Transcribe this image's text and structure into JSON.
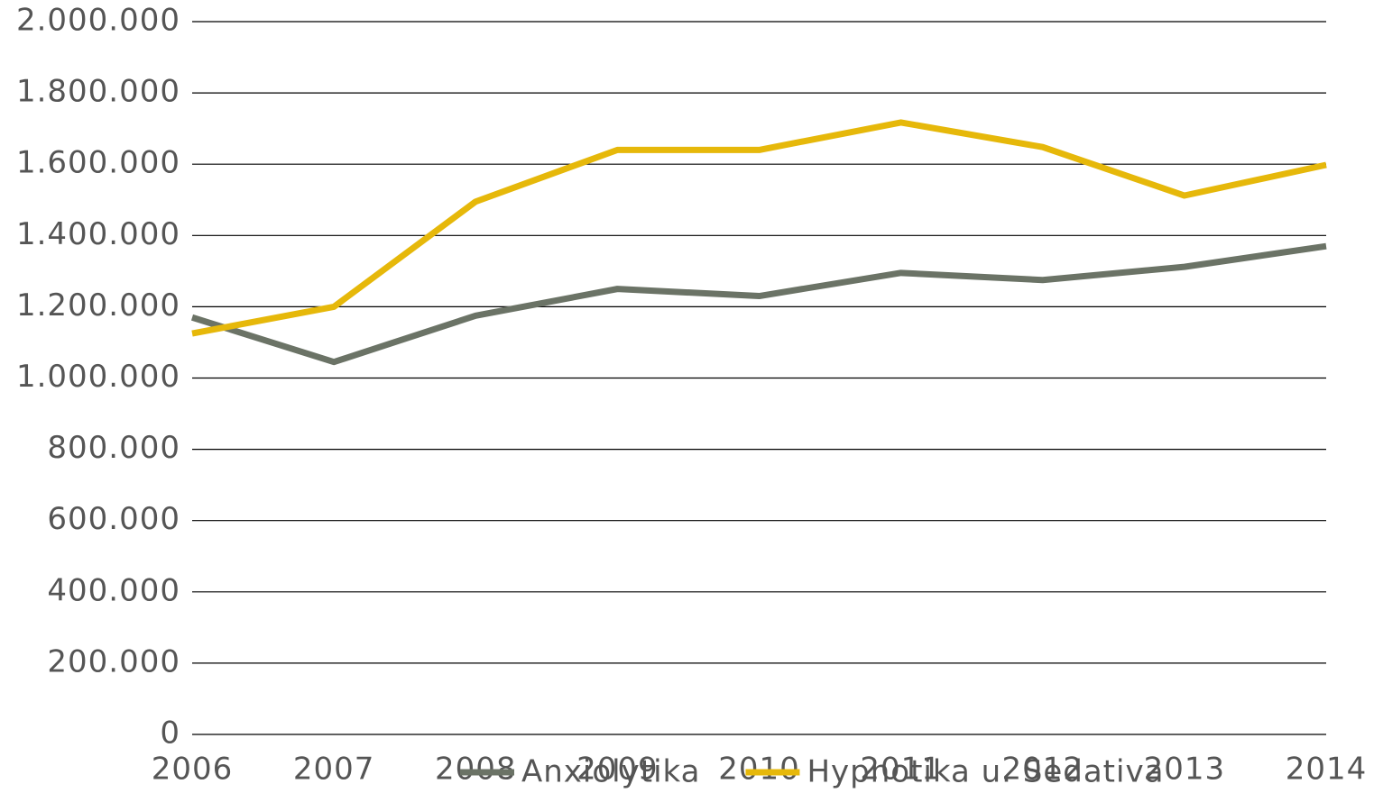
{
  "chart_data": {
    "type": "line",
    "x": [
      2006,
      2007,
      2008,
      2009,
      2010,
      2011,
      2012,
      2013,
      2014
    ],
    "xlim": [
      2006,
      2014
    ],
    "xticks": [
      2006,
      2007,
      2008,
      2009,
      2010,
      2011,
      2012,
      2013,
      2014
    ],
    "ylim": [
      0,
      2000000
    ],
    "yticks": [
      0,
      {
        "value": 200000,
        "label": "200.000"
      },
      {
        "value": 400000,
        "label": "400.000"
      },
      {
        "value": 600000,
        "label": "600.000"
      },
      {
        "value": 800000,
        "label": "800.000"
      },
      {
        "value": 1000000,
        "label": "1.000.000"
      },
      {
        "value": 1200000,
        "label": "1.200.000"
      },
      {
        "value": 1400000,
        "label": "1.400.000"
      },
      {
        "value": 1600000,
        "label": "1.600.000"
      },
      {
        "value": 1800000,
        "label": "1.800.000"
      },
      {
        "value": 2000000,
        "label": "2.000.000"
      }
    ],
    "grid": true,
    "legend": "bottom",
    "series": [
      {
        "name": "Anxiolytika",
        "color": "#6b7366",
        "values": [
          1170000,
          1045000,
          1175000,
          1250000,
          1230000,
          1295000,
          1275000,
          1312000,
          1370000
        ]
      },
      {
        "name": "Hypnotika u. Sedativa",
        "color": "#e6b80a",
        "values": [
          1125000,
          1200000,
          1495000,
          1640000,
          1640000,
          1717000,
          1648000,
          1512000,
          1598000
        ]
      }
    ]
  }
}
